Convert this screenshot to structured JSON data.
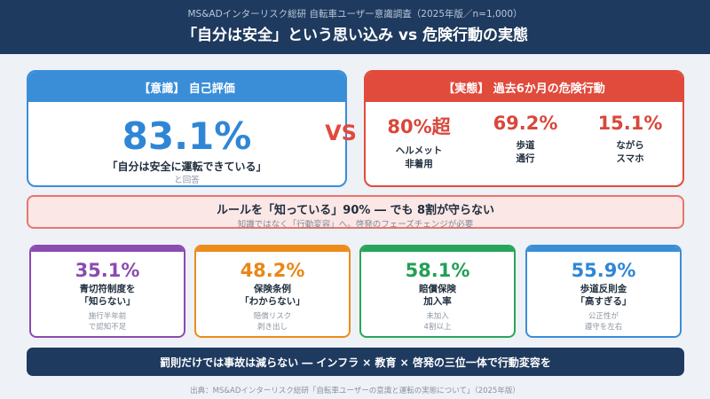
{
  "header": {
    "subtitle": "MS&ADインターリスク総研 自転車ユーザー意識調査（2025年版／n=1,000）",
    "title": "「自分は安全」という思い込み vs 危険行動の実態"
  },
  "self_eval": {
    "heading": "【意識】 自己評価",
    "value": "83.1%",
    "label": "「自分は安全に運転できている」",
    "note": "と回答"
  },
  "vs_label": "VS",
  "actual": {
    "heading": "【実態】 過去6か月の危険行動",
    "stats": [
      {
        "value": "80%超",
        "line1": "ヘルメット",
        "line2": "非着用"
      },
      {
        "value": "69.2%",
        "line1": "歩道",
        "line2": "通行"
      },
      {
        "value": "15.1%",
        "line1": "ながら",
        "line2": "スマホ"
      }
    ]
  },
  "banner": {
    "main": "ルールを「知っている」90% ― でも 8割が守らない",
    "sub": "知識ではなく「行動変容」へ。啓発のフェーズチェンジが必要"
  },
  "cards": [
    {
      "value": "35.1%",
      "line1": "青切符制度を",
      "line2": "「知らない」",
      "note1": "施行半年前",
      "note2": "で認知不足",
      "color": "#8b4bb0"
    },
    {
      "value": "48.2%",
      "line1": "保険条例",
      "line2": "「わからない」",
      "note1": "賠償リスク",
      "note2": "剥き出し",
      "color": "#ec8c1a"
    },
    {
      "value": "58.1%",
      "line1": "賠償保険",
      "line2": "加入率",
      "note1": "未加入",
      "note2": "4割以上",
      "color": "#27a55a"
    },
    {
      "value": "55.9%",
      "line1": "歩道反則金",
      "line2": "「高すぎる」",
      "note1": "公正性が",
      "note2": "遵守を左右",
      "color": "#3a8ed8"
    }
  ],
  "footer": "罰則だけでは事故は減らない ― インフラ × 教育 × 啓発の三位一体で行動変容を",
  "source": "出典：MS&ADインターリスク総研「自転車ユーザーの意識と運転の実態について」（2025年版）"
}
